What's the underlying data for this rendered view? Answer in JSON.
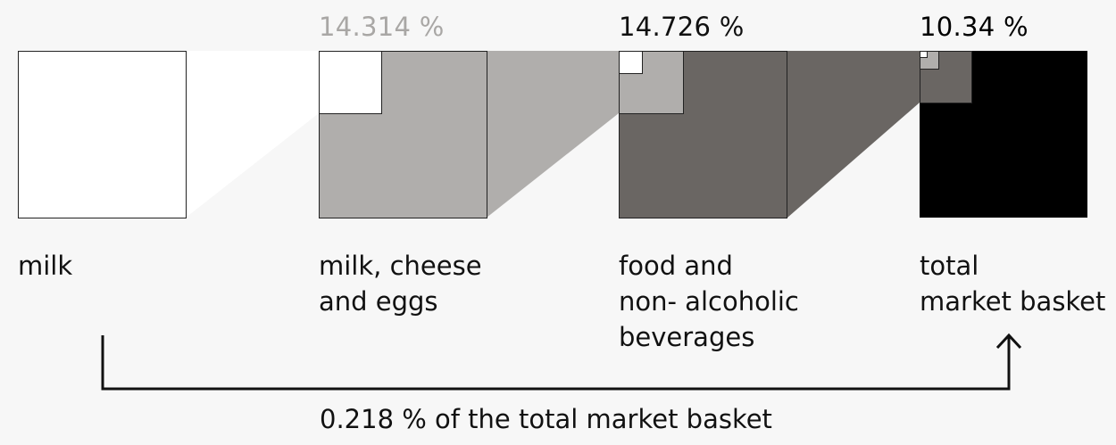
{
  "diagram": {
    "stages": [
      {
        "label": "milk",
        "fill": "#ffffff",
        "percent": ""
      },
      {
        "label": "milk, cheese\nand eggs",
        "fill": "#b0aeac",
        "percent": "14.314 %",
        "percent_color": "#a9a7a5"
      },
      {
        "label": "food and\nnon- alcoholic\nbeverages",
        "fill": "#6a6663",
        "percent": "14.726 %",
        "percent_color": "#111111"
      },
      {
        "label": "total\nmarket basket",
        "fill": "#000000",
        "percent": "10.34 %",
        "percent_color": "#000000"
      }
    ],
    "caption": "0.218 % of the total market basket",
    "colors": {
      "background": "#f7f7f7",
      "outline": "#222222",
      "connector_white": "#ffffff",
      "connector_light": "#b0aeac",
      "connector_dark": "#6a6663",
      "arrow": "#111111"
    }
  }
}
